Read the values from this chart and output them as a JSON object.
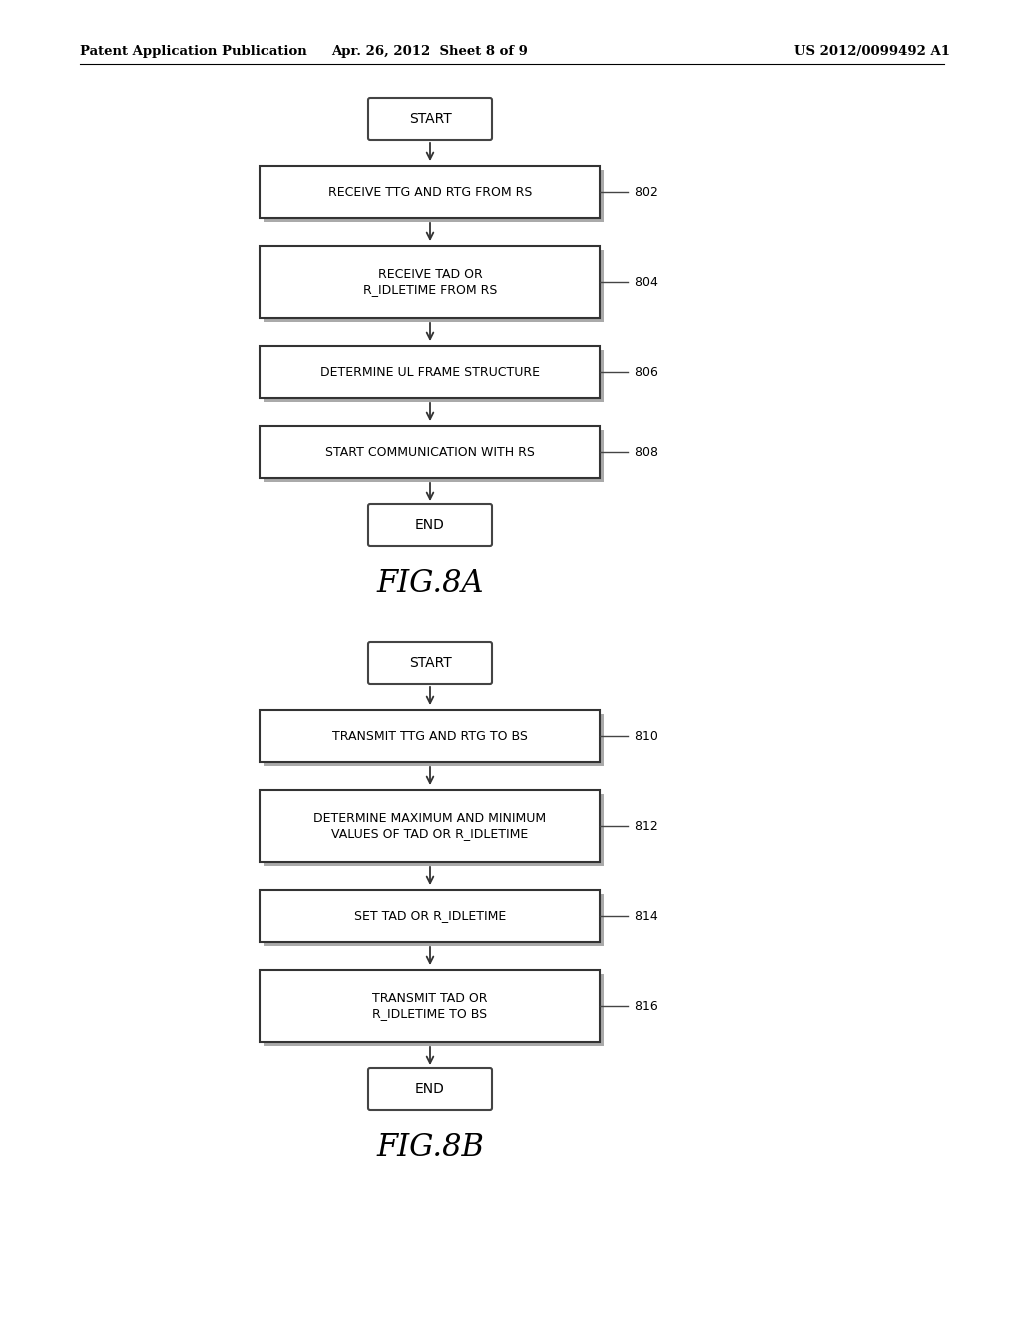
{
  "bg_color": "#ffffff",
  "header_left": "Patent Application Publication",
  "header_mid": "Apr. 26, 2012  Sheet 8 of 9",
  "header_right": "US 2012/0099492 A1",
  "fig8a": {
    "title": "FIG.8A",
    "boxes": [
      {
        "label": "RECEIVE TTG AND RTG FROM RS",
        "ref": "802",
        "lines": 1
      },
      {
        "label": "RECEIVE TAD OR\nR_IDLETIME FROM RS",
        "ref": "804",
        "lines": 2
      },
      {
        "label": "DETERMINE UL FRAME STRUCTURE",
        "ref": "806",
        "lines": 1
      },
      {
        "label": "START COMMUNICATION WITH RS",
        "ref": "808",
        "lines": 1
      }
    ]
  },
  "fig8b": {
    "title": "FIG.8B",
    "boxes": [
      {
        "label": "TRANSMIT TTG AND RTG TO BS",
        "ref": "810",
        "lines": 1
      },
      {
        "label": "DETERMINE MAXIMUM AND MINIMUM\nVALUES OF TAD OR R_IDLETIME",
        "ref": "812",
        "lines": 2
      },
      {
        "label": "SET TAD OR R_IDLETIME",
        "ref": "814",
        "lines": 1
      },
      {
        "label": "TRANSMIT TAD OR\nR_IDLETIME TO BS",
        "ref": "816",
        "lines": 2
      }
    ]
  }
}
